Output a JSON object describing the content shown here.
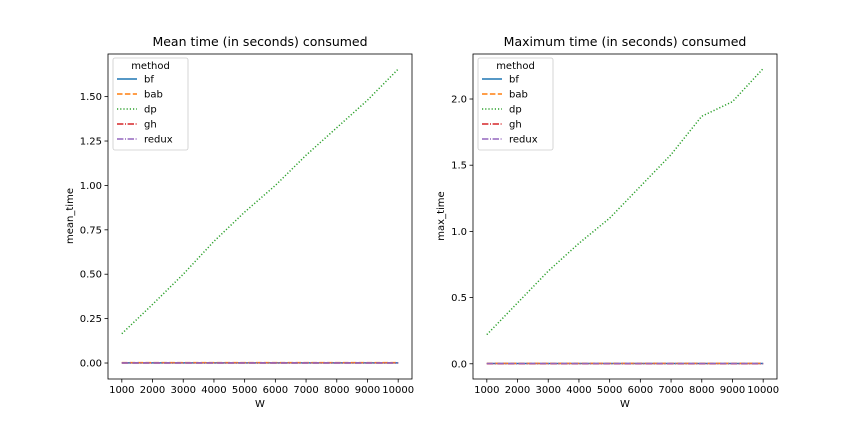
{
  "chart_data": [
    {
      "type": "line",
      "title": "Mean time (in seconds) consumed",
      "xlabel": "W",
      "ylabel": "mean_time",
      "xlim": [
        550,
        10450
      ],
      "ylim": [
        -0.09,
        1.74
      ],
      "xticks": [
        1000,
        2000,
        3000,
        4000,
        5000,
        6000,
        7000,
        8000,
        9000,
        10000
      ],
      "xtick_labels": [
        "1000",
        "2000",
        "3000",
        "4000",
        "5000",
        "6000",
        "7000",
        "8000",
        "9000",
        "10000"
      ],
      "yticks": [
        0,
        0.25,
        0.5,
        0.75,
        1.0,
        1.25,
        1.5
      ],
      "ytick_labels": [
        "0.00",
        "0.25",
        "0.50",
        "0.75",
        "1.00",
        "1.25",
        "1.50"
      ],
      "legend": {
        "title": "method",
        "placement": "upper-left"
      },
      "grid": false,
      "x": [
        1000,
        2000,
        3000,
        4000,
        5000,
        6000,
        7000,
        8000,
        9000,
        10000
      ],
      "series": [
        {
          "name": "bf",
          "color": "#1f77b4",
          "dash": "solid",
          "values": [
            0.001,
            0.001,
            0.001,
            0.001,
            0.001,
            0.001,
            0.001,
            0.001,
            0.001,
            0.001
          ]
        },
        {
          "name": "bab",
          "color": "#ff7f0e",
          "dash": "dashed",
          "values": [
            0.002,
            0.002,
            0.002,
            0.002,
            0.002,
            0.002,
            0.002,
            0.002,
            0.002,
            0.002
          ]
        },
        {
          "name": "dp",
          "color": "#2ca02c",
          "dash": "dotted",
          "values": [
            0.165,
            0.33,
            0.5,
            0.685,
            0.85,
            1.0,
            1.17,
            1.325,
            1.48,
            1.655
          ]
        },
        {
          "name": "gh",
          "color": "#d62728",
          "dash": "dashdot",
          "values": [
            0.0,
            0.0,
            0.0,
            0.0,
            0.0,
            0.0,
            0.0,
            0.0,
            0.0,
            0.0
          ]
        },
        {
          "name": "redux",
          "color": "#9467bd",
          "dash": "dashdot",
          "values": [
            0.001,
            0.001,
            0.001,
            0.001,
            0.001,
            0.001,
            0.001,
            0.001,
            0.001,
            0.001
          ]
        }
      ]
    },
    {
      "type": "line",
      "title": "Maximum time (in seconds) consumed",
      "xlabel": "W",
      "ylabel": "max_time",
      "xlim": [
        550,
        10450
      ],
      "ylim": [
        -0.115,
        2.34
      ],
      "xticks": [
        1000,
        2000,
        3000,
        4000,
        5000,
        6000,
        7000,
        8000,
        9000,
        10000
      ],
      "xtick_labels": [
        "1000",
        "2000",
        "3000",
        "4000",
        "5000",
        "6000",
        "7000",
        "8000",
        "9000",
        "10000"
      ],
      "yticks": [
        0,
        0.5,
        1.0,
        1.5,
        2.0
      ],
      "ytick_labels": [
        "0.0",
        "0.5",
        "1.0",
        "1.5",
        "2.0"
      ],
      "legend": {
        "title": "method",
        "placement": "upper-left"
      },
      "grid": false,
      "x": [
        1000,
        2000,
        3000,
        4000,
        5000,
        6000,
        7000,
        8000,
        9000,
        10000
      ],
      "series": [
        {
          "name": "bf",
          "color": "#1f77b4",
          "dash": "solid",
          "values": [
            0.002,
            0.002,
            0.002,
            0.002,
            0.002,
            0.002,
            0.002,
            0.002,
            0.002,
            0.002
          ]
        },
        {
          "name": "bab",
          "color": "#ff7f0e",
          "dash": "dashed",
          "values": [
            0.003,
            0.003,
            0.003,
            0.003,
            0.003,
            0.003,
            0.003,
            0.003,
            0.003,
            0.003
          ]
        },
        {
          "name": "dp",
          "color": "#2ca02c",
          "dash": "dotted",
          "values": [
            0.22,
            0.46,
            0.7,
            0.91,
            1.1,
            1.34,
            1.58,
            1.87,
            1.98,
            2.23
          ]
        },
        {
          "name": "gh",
          "color": "#d62728",
          "dash": "dashdot",
          "values": [
            0.0,
            0.0,
            0.0,
            0.0,
            0.0,
            0.0,
            0.0,
            0.0,
            0.0,
            0.0
          ]
        },
        {
          "name": "redux",
          "color": "#9467bd",
          "dash": "dashdot",
          "values": [
            0.002,
            0.002,
            0.002,
            0.002,
            0.002,
            0.002,
            0.002,
            0.002,
            0.002,
            0.002
          ]
        }
      ]
    }
  ]
}
